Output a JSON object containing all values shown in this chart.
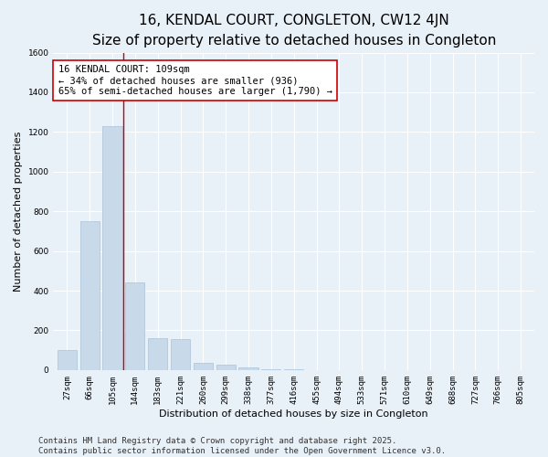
{
  "title": "16, KENDAL COURT, CONGLETON, CW12 4JN",
  "subtitle": "Size of property relative to detached houses in Congleton",
  "xlabel": "Distribution of detached houses by size in Congleton",
  "ylabel": "Number of detached properties",
  "bins": [
    "27sqm",
    "66sqm",
    "105sqm",
    "144sqm",
    "183sqm",
    "221sqm",
    "260sqm",
    "299sqm",
    "338sqm",
    "377sqm",
    "416sqm",
    "455sqm",
    "494sqm",
    "533sqm",
    "571sqm",
    "610sqm",
    "649sqm",
    "688sqm",
    "727sqm",
    "766sqm",
    "805sqm"
  ],
  "values": [
    100,
    750,
    1230,
    440,
    160,
    155,
    35,
    25,
    15,
    5,
    3,
    1,
    0,
    0,
    0,
    0,
    0,
    0,
    0,
    0,
    0
  ],
  "bar_color": "#c8daea",
  "bar_edge_color": "#aac4d8",
  "vline_x_index": 2.47,
  "vline_color": "#cc0000",
  "annotation_text": "16 KENDAL COURT: 109sqm\n← 34% of detached houses are smaller (936)\n65% of semi-detached houses are larger (1,790) →",
  "annotation_box_color": "#ffffff",
  "annotation_box_edge_color": "#cc0000",
  "ylim": [
    0,
    1600
  ],
  "yticks": [
    0,
    200,
    400,
    600,
    800,
    1000,
    1200,
    1400,
    1600
  ],
  "footer1": "Contains HM Land Registry data © Crown copyright and database right 2025.",
  "footer2": "Contains public sector information licensed under the Open Government Licence v3.0.",
  "background_color": "#e8f0f8",
  "plot_bg_color": "#e8f0f8",
  "grid_color": "#ffffff",
  "title_fontsize": 11,
  "subtitle_fontsize": 9.5,
  "label_fontsize": 8,
  "tick_fontsize": 6.5,
  "footer_fontsize": 6.5,
  "annotation_fontsize": 7.5
}
